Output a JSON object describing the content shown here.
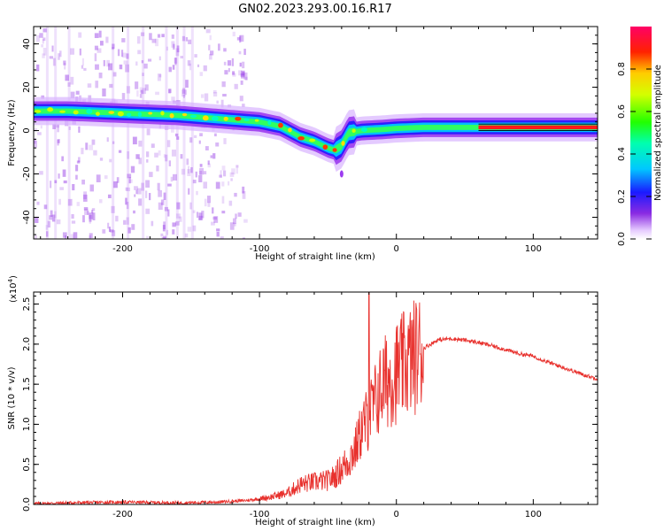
{
  "figure_title": "GN02.2023.293.00.16.R17",
  "colorbar": {
    "label": "Normalized spectral amplitude",
    "ticks": [
      "0.0",
      "0.2",
      "0.4",
      "0.6",
      "0.8"
    ]
  },
  "chart_data": [
    {
      "type": "heatmap",
      "xlabel": "Height of straight line (km)",
      "ylabel": "Frequency (Hz)",
      "xlim": [
        -265,
        147
      ],
      "ylim": [
        -50,
        48
      ],
      "x_ticks": [
        -200,
        -100,
        0,
        100
      ],
      "y_ticks": [
        -40,
        -20,
        0,
        20,
        40
      ],
      "x_tick_labels": [
        "-200",
        "-100",
        "0",
        "100"
      ],
      "y_tick_labels": [
        "-40",
        "-20",
        "0",
        "20",
        "40"
      ],
      "colormap": "rainbow (violet-blue-cyan-green-yellow-red-magenta)",
      "ridge": {
        "description": "frequency of peak spectral amplitude vs height",
        "x": [
          -265,
          -240,
          -200,
          -160,
          -120,
          -100,
          -85,
          -70,
          -60,
          -50,
          -45,
          -40,
          -35,
          -25,
          -10,
          0,
          20,
          50,
          80,
          100,
          120,
          147
        ],
        "y": [
          9,
          9,
          8,
          7,
          5,
          4,
          2,
          -3,
          -5,
          -8,
          -9,
          -7,
          -1,
          0,
          0.5,
          1,
          1.5,
          1.5,
          1.5,
          1.5,
          1.5,
          1.5
        ]
      }
    },
    {
      "type": "line",
      "xlabel": "Height of straight line (km)",
      "ylabel": "SNR (10 * v/v)",
      "y_multiplier": "(x10",
      "y_multiplier_exp": "4",
      "y_multiplier_close": ")",
      "xlim": [
        -265,
        147
      ],
      "ylim": [
        0,
        2.65
      ],
      "x_ticks": [
        -200,
        -100,
        0,
        100
      ],
      "y_ticks": [
        0,
        0.5,
        1.0,
        1.5,
        2.0,
        2.5
      ],
      "x_tick_labels": [
        "-200",
        "-100",
        "0",
        "100"
      ],
      "y_tick_labels": [
        "0.0",
        "0.5",
        "1.0",
        "1.5",
        "2.0",
        "2.5"
      ],
      "color": "#e8312d",
      "x": [
        -265,
        -240,
        -200,
        -160,
        -130,
        -110,
        -100,
        -90,
        -80,
        -70,
        -60,
        -50,
        -45,
        -40,
        -35,
        -30,
        -25,
        -20,
        -15,
        -10,
        0,
        10,
        20,
        30,
        40,
        50,
        60,
        70,
        80,
        90,
        100,
        110,
        120,
        130,
        140,
        147
      ],
      "y": [
        0.01,
        0.02,
        0.03,
        0.02,
        0.03,
        0.05,
        0.07,
        0.1,
        0.14,
        0.25,
        0.28,
        0.3,
        0.35,
        0.45,
        0.55,
        0.7,
        0.95,
        1.1,
        1.3,
        1.5,
        1.65,
        1.8,
        1.95,
        2.05,
        2.07,
        2.05,
        2.02,
        1.98,
        1.93,
        1.88,
        1.85,
        1.78,
        1.72,
        1.66,
        1.6,
        1.57
      ]
    }
  ]
}
